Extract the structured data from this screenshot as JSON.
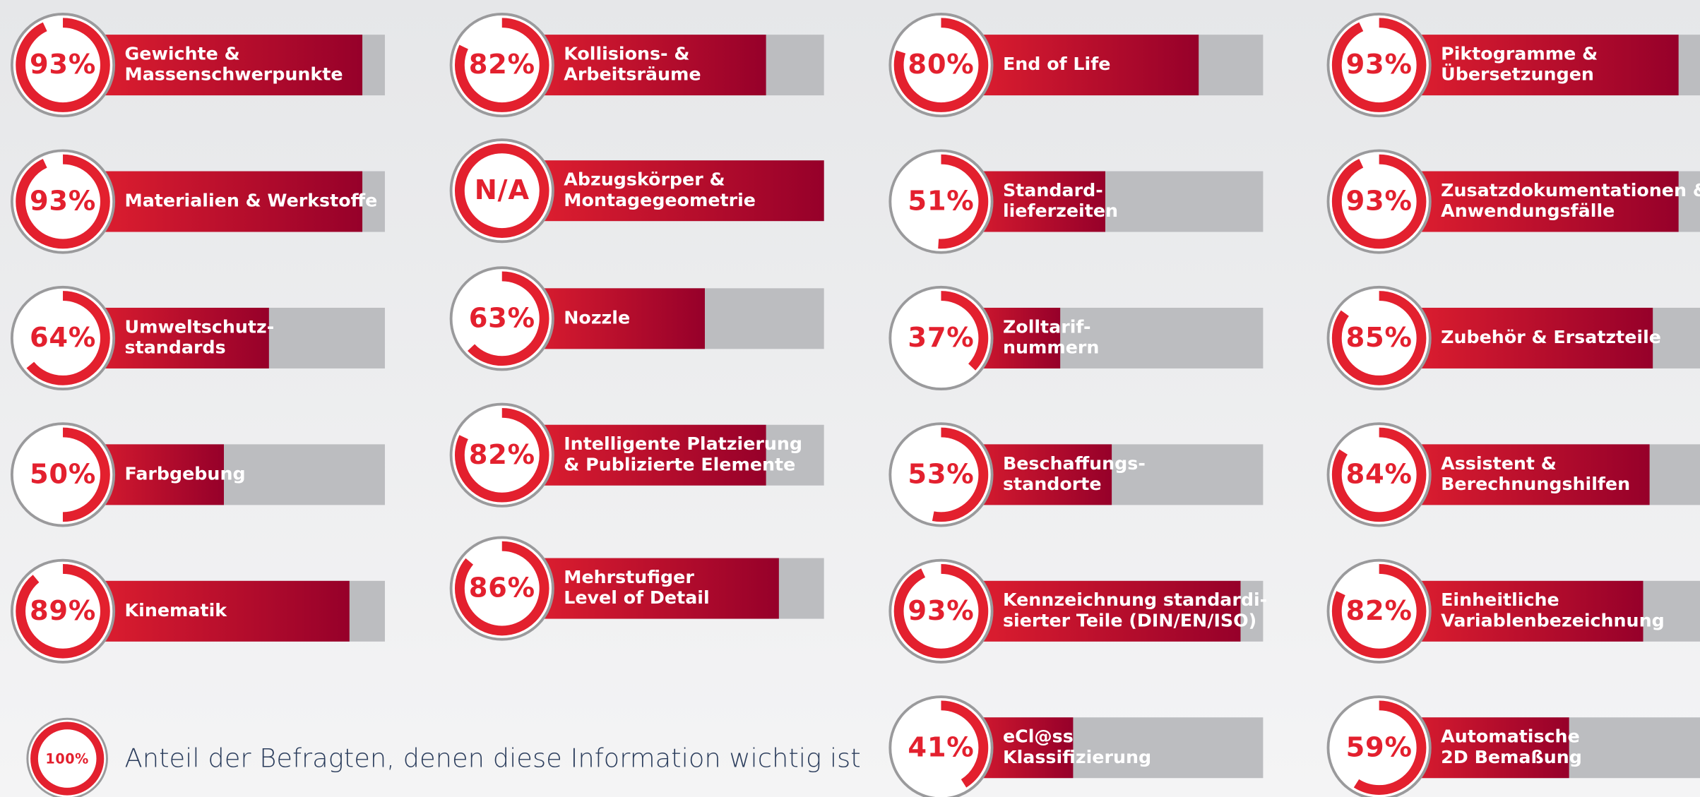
{
  "chart_data": {
    "type": "bar",
    "xlim": [
      0,
      100
    ],
    "categories": [
      [
        "Gewichte &",
        "Massenschwerpunkte"
      ],
      [
        "Materialien & Werkstoffe"
      ],
      [
        "Umweltschutz-",
        "standards"
      ],
      [
        "Farbgebung"
      ],
      [
        "Kinematik"
      ],
      [
        "Kollisions- &",
        "Arbeitsräume"
      ],
      [
        "Abzugskörper &",
        "Montagegeometrie"
      ],
      [
        "Nozzle"
      ],
      [
        "Intelligente Platzierung",
        "& Publizierte Elemente"
      ],
      [
        "Mehrstufiger",
        "Level of Detail"
      ],
      [
        "End of Life"
      ],
      [
        "Standard-",
        "lieferzeiten"
      ],
      [
        "Zolltarif-",
        "nummern"
      ],
      [
        "Beschaffungs-",
        "standorte"
      ],
      [
        "Kennzeichnung standardi-",
        "sierter Teile (DIN/EN/ISO)"
      ],
      [
        "eCl@ss",
        "Klassifizierung"
      ],
      [
        "Piktogramme &",
        "Übersetzungen"
      ],
      [
        "Zusatzdokumentationen &",
        "Anwendungsfälle"
      ],
      [
        "Zubehör & Ersatzteile"
      ],
      [
        "Assistent &",
        "Berechnungshilfen"
      ],
      [
        "Einheitliche",
        "Variablenbezeichnung"
      ],
      [
        "Automatische",
        "2D Bemaßung"
      ]
    ],
    "values": [
      93,
      93,
      64,
      50,
      89,
      82,
      null,
      63,
      82,
      86,
      80,
      51,
      37,
      53,
      93,
      41,
      93,
      93,
      85,
      84,
      82,
      59
    ],
    "value_labels": [
      "93%",
      "93%",
      "64%",
      "50%",
      "89%",
      "82%",
      "N/A",
      "63%",
      "82%",
      "86%",
      "80%",
      "51%",
      "37%",
      "53%",
      "93%",
      "41%",
      "93%",
      "93%",
      "85%",
      "84%",
      "82%",
      "59%"
    ],
    "legend": {
      "value": 100,
      "value_label": "100%",
      "text": "Anteil der Befragten, denen diese Information wichtig ist"
    }
  }
}
